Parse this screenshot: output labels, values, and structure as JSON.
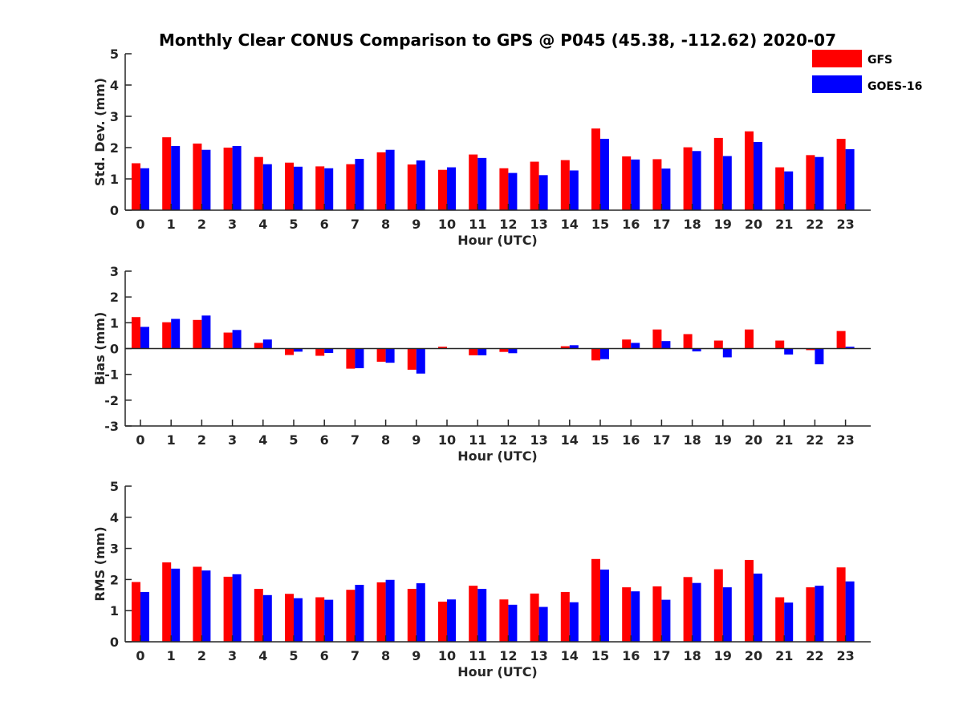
{
  "title": "Monthly Clear CONUS Comparison to GPS @ P045 (45.38, -112.62) 2020-07",
  "legend": [
    {
      "name": "GFS",
      "color": "#ff0000"
    },
    {
      "name": "GOES-16",
      "color": "#0000ff"
    }
  ],
  "chart_data": [
    {
      "type": "bar",
      "categories": [
        "0",
        "1",
        "2",
        "3",
        "4",
        "5",
        "6",
        "7",
        "8",
        "9",
        "10",
        "11",
        "12",
        "13",
        "14",
        "15",
        "16",
        "17",
        "18",
        "19",
        "20",
        "21",
        "22",
        "23"
      ],
      "xlabel": "Hour (UTC)",
      "ylabel": "Std. Dev. (mm)",
      "ylim": [
        0,
        5
      ],
      "yticks": [
        "0",
        "1",
        "2",
        "3",
        "4",
        "5"
      ],
      "series": [
        {
          "name": "GFS",
          "values": [
            1.5,
            2.33,
            2.13,
            2.0,
            1.7,
            1.52,
            1.4,
            1.47,
            1.85,
            1.46,
            1.29,
            1.78,
            1.34,
            1.55,
            1.6,
            2.61,
            1.72,
            1.63,
            2.01,
            2.31,
            2.52,
            1.37,
            1.76,
            2.28
          ]
        },
        {
          "name": "GOES-16",
          "values": [
            1.34,
            2.05,
            1.93,
            2.05,
            1.47,
            1.39,
            1.34,
            1.64,
            1.93,
            1.59,
            1.37,
            1.67,
            1.19,
            1.12,
            1.27,
            2.28,
            1.62,
            1.33,
            1.89,
            1.73,
            2.18,
            1.24,
            1.7,
            1.95
          ]
        }
      ]
    },
    {
      "type": "bar",
      "categories": [
        "0",
        "1",
        "2",
        "3",
        "4",
        "5",
        "6",
        "7",
        "8",
        "9",
        "10",
        "11",
        "12",
        "13",
        "14",
        "15",
        "16",
        "17",
        "18",
        "19",
        "20",
        "21",
        "22",
        "23"
      ],
      "xlabel": "Hour (UTC)",
      "ylabel": "Bias (mm)",
      "ylim": [
        -3,
        3
      ],
      "yticks": [
        "-3",
        "-2",
        "-1",
        "0",
        "1",
        "2",
        "3"
      ],
      "series": [
        {
          "name": "GFS",
          "values": [
            1.22,
            1.02,
            1.11,
            0.62,
            0.22,
            -0.25,
            -0.28,
            -0.78,
            -0.51,
            -0.82,
            0.07,
            -0.26,
            -0.13,
            0.0,
            0.09,
            -0.46,
            0.35,
            0.74,
            0.56,
            0.31,
            0.74,
            0.31,
            -0.06,
            0.68
          ]
        },
        {
          "name": "GOES-16",
          "values": [
            0.84,
            1.15,
            1.28,
            0.72,
            0.35,
            -0.12,
            -0.17,
            -0.76,
            -0.55,
            -0.97,
            0.0,
            -0.26,
            -0.18,
            0.0,
            0.13,
            -0.41,
            0.22,
            0.29,
            -0.11,
            -0.34,
            0.0,
            -0.23,
            -0.61,
            0.07
          ]
        }
      ]
    },
    {
      "type": "bar",
      "categories": [
        "0",
        "1",
        "2",
        "3",
        "4",
        "5",
        "6",
        "7",
        "8",
        "9",
        "10",
        "11",
        "12",
        "13",
        "14",
        "15",
        "16",
        "17",
        "18",
        "19",
        "20",
        "21",
        "22",
        "23"
      ],
      "xlabel": "Hour (UTC)",
      "ylabel": "RMS (mm)",
      "ylim": [
        0,
        5
      ],
      "yticks": [
        "0",
        "1",
        "2",
        "3",
        "4",
        "5"
      ],
      "series": [
        {
          "name": "GFS",
          "values": [
            1.92,
            2.55,
            2.41,
            2.09,
            1.7,
            1.54,
            1.43,
            1.67,
            1.91,
            1.7,
            1.29,
            1.8,
            1.36,
            1.55,
            1.6,
            2.66,
            1.75,
            1.78,
            2.08,
            2.33,
            2.63,
            1.43,
            1.75,
            2.39
          ]
        },
        {
          "name": "GOES-16",
          "values": [
            1.6,
            2.35,
            2.29,
            2.17,
            1.5,
            1.4,
            1.35,
            1.83,
            1.99,
            1.88,
            1.36,
            1.7,
            1.19,
            1.12,
            1.27,
            2.32,
            1.62,
            1.35,
            1.89,
            1.75,
            2.19,
            1.26,
            1.8,
            1.94
          ]
        }
      ]
    }
  ]
}
